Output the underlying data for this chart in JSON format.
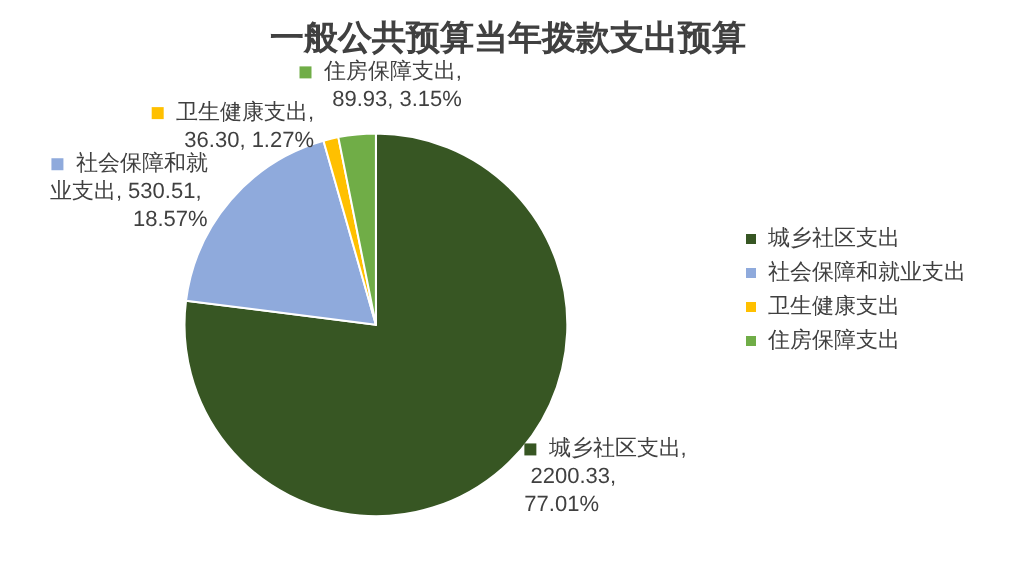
{
  "chart_data": {
    "type": "pie",
    "title": "一般公共预算当年拨款支出预算",
    "categories": [
      "城乡社区支出",
      "社会保障和就业支出",
      "卫生健康支出",
      "住房保障支出"
    ],
    "values": [
      2200.33,
      530.51,
      36.3,
      89.93
    ],
    "colors": [
      "#375623",
      "#8faadc",
      "#ffc000",
      "#70ad47"
    ],
    "value_labels": [
      "城乡社区支出, 2200.33, 77.01%",
      "社会保障和就业支出, 530.51, 18.57%",
      "卫生健康支出, 36.30, 1.27%",
      "住房保障支出, 89.93, 3.15%"
    ],
    "legend": "right"
  }
}
